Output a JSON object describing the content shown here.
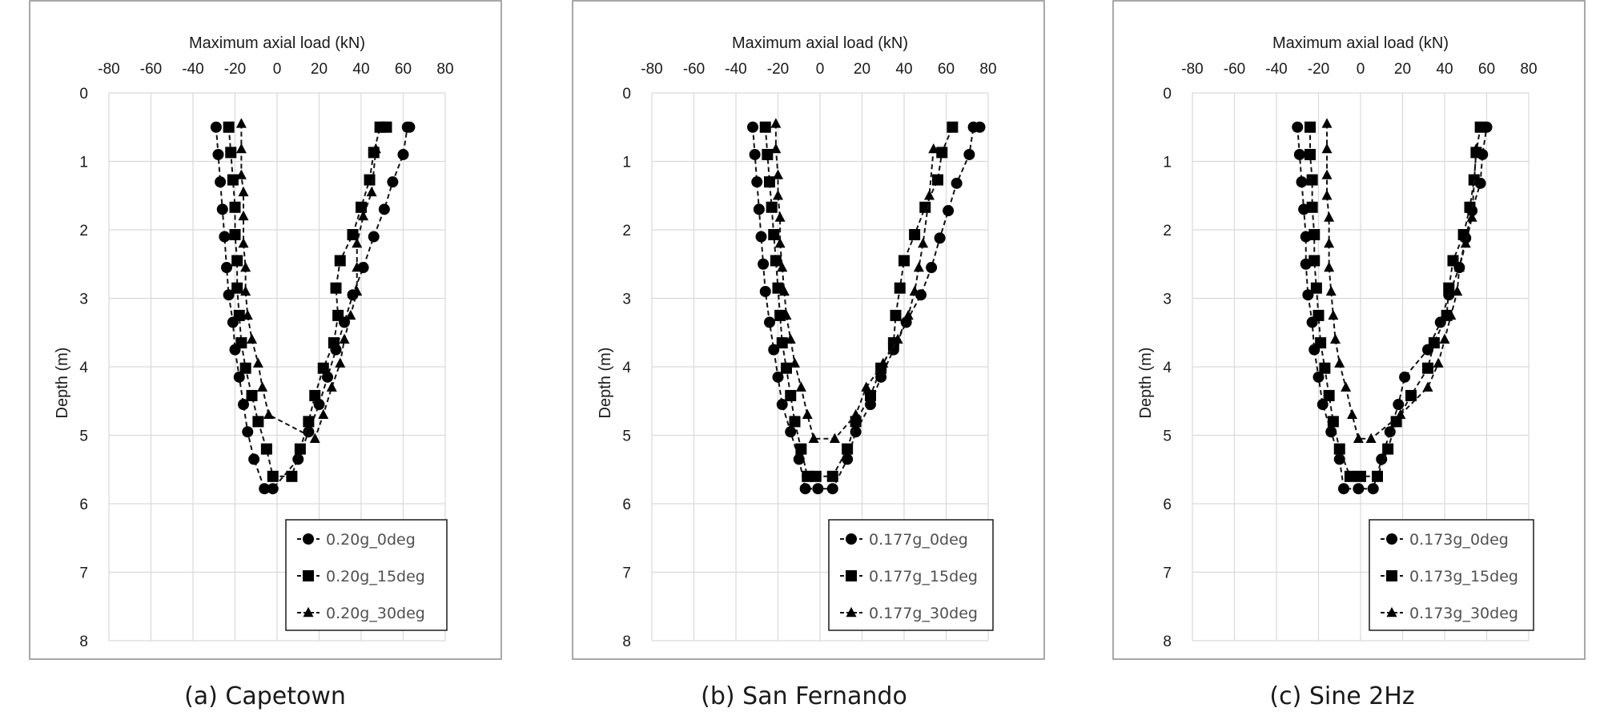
{
  "chart_data": [
    {
      "type": "line",
      "caption": "(a) Capetown",
      "xlabel": "Maximum axial load (kN)",
      "ylabel": "Depth (m)",
      "xlim": [
        -80,
        80
      ],
      "ylim": [
        8,
        0
      ],
      "xticks": [
        -80,
        -60,
        -40,
        -20,
        0,
        20,
        40,
        60,
        80
      ],
      "yticks": [
        0,
        1,
        2,
        3,
        4,
        5,
        6,
        7,
        8
      ],
      "grid": true,
      "legend_position": "bottom-right",
      "series": [
        {
          "name": "0.20g_0deg",
          "marker": "circle",
          "x": [
            -29,
            -28,
            -27,
            -26,
            -25,
            -24,
            -23,
            -21,
            -20,
            -18,
            -16,
            -14,
            -11,
            -6,
            -2,
            10,
            15,
            20,
            24,
            28,
            32,
            36,
            41,
            46,
            51,
            55,
            60,
            62,
            63
          ],
          "y": [
            0.5,
            0.9,
            1.3,
            1.7,
            2.1,
            2.55,
            2.95,
            3.35,
            3.75,
            4.15,
            4.55,
            4.95,
            5.35,
            5.78,
            5.78,
            5.35,
            4.95,
            4.55,
            4.15,
            3.75,
            3.35,
            2.95,
            2.55,
            2.1,
            1.7,
            1.3,
            0.9,
            0.5,
            0.5
          ]
        },
        {
          "name": "0.20g_15deg",
          "marker": "square",
          "x": [
            -23,
            -22,
            -21,
            -20,
            -20,
            -19,
            -19,
            -18,
            -17,
            -15,
            -12,
            -9,
            -5,
            -2,
            7,
            11,
            15,
            18,
            22,
            27,
            29,
            28,
            30,
            36,
            40,
            44,
            46,
            49,
            52
          ],
          "y": [
            0.5,
            0.87,
            1.27,
            1.67,
            2.07,
            2.45,
            2.85,
            3.25,
            3.65,
            4.02,
            4.42,
            4.8,
            5.2,
            5.6,
            5.6,
            5.2,
            4.8,
            4.42,
            4.02,
            3.65,
            3.25,
            2.85,
            2.45,
            2.07,
            1.67,
            1.27,
            0.87,
            0.5,
            0.5
          ]
        },
        {
          "name": "0.20g_30deg",
          "marker": "triangle",
          "x": [
            -17,
            -17,
            -17,
            -16,
            -16,
            -16,
            -15,
            -15,
            -14,
            -12,
            -9,
            -7,
            -4,
            18,
            22,
            26,
            30,
            32,
            35,
            38,
            38,
            38,
            41,
            45,
            47
          ],
          "y": [
            0.45,
            0.82,
            1.2,
            1.45,
            1.8,
            2.2,
            2.55,
            2.9,
            3.25,
            3.6,
            3.95,
            4.3,
            4.7,
            5.05,
            4.7,
            4.3,
            3.95,
            3.6,
            3.25,
            2.9,
            2.55,
            2.2,
            1.8,
            1.45,
            0.82
          ]
        }
      ]
    },
    {
      "type": "line",
      "caption": "(b) San Fernando",
      "xlabel": "Maximum axial load (kN)",
      "ylabel": "Depth (m)",
      "xlim": [
        -80,
        80
      ],
      "ylim": [
        8,
        0
      ],
      "xticks": [
        -80,
        -60,
        -40,
        -20,
        0,
        20,
        40,
        60,
        80
      ],
      "yticks": [
        0,
        1,
        2,
        3,
        4,
        5,
        6,
        7,
        8
      ],
      "grid": true,
      "legend_position": "bottom-right",
      "series": [
        {
          "name": "0.177g_0deg",
          "marker": "circle",
          "x": [
            -32,
            -31,
            -30,
            -29,
            -28,
            -27,
            -26,
            -24,
            -22,
            -20,
            -18,
            -14,
            -10,
            -7,
            -1,
            6,
            13,
            17,
            24,
            29,
            35,
            41,
            48,
            53,
            57,
            61,
            65,
            71,
            73,
            76
          ],
          "y": [
            0.5,
            0.9,
            1.3,
            1.7,
            2.1,
            2.5,
            2.9,
            3.35,
            3.75,
            4.15,
            4.55,
            4.95,
            5.35,
            5.78,
            5.78,
            5.78,
            5.35,
            4.95,
            4.55,
            4.15,
            3.75,
            3.35,
            2.95,
            2.55,
            2.12,
            1.72,
            1.32,
            0.9,
            0.5,
            0.5
          ]
        },
        {
          "name": "0.177g_15deg",
          "marker": "square",
          "x": [
            -26,
            -25,
            -24,
            -23,
            -22,
            -21,
            -20,
            -19,
            -18,
            -16,
            -14,
            -12,
            -9,
            -6,
            -2,
            6,
            13,
            17,
            24,
            29,
            35,
            36,
            38,
            40,
            45,
            50,
            56,
            58,
            63
          ],
          "y": [
            0.5,
            0.9,
            1.3,
            1.67,
            2.07,
            2.45,
            2.85,
            3.25,
            3.65,
            4.02,
            4.42,
            4.8,
            5.2,
            5.6,
            5.6,
            5.6,
            5.2,
            4.8,
            4.42,
            4.02,
            3.65,
            3.25,
            2.85,
            2.45,
            2.07,
            1.67,
            1.27,
            0.87,
            0.5
          ]
        },
        {
          "name": "0.177g_30deg",
          "marker": "triangle",
          "x": [
            -21,
            -21,
            -20,
            -20,
            -19,
            -19,
            -18,
            -17,
            -16,
            -14,
            -12,
            -9,
            -6,
            -3,
            7,
            17,
            22,
            30,
            37,
            42,
            45,
            47,
            49,
            52,
            54
          ],
          "y": [
            0.45,
            0.82,
            1.2,
            1.5,
            1.82,
            2.2,
            2.55,
            2.9,
            3.25,
            3.6,
            3.95,
            4.3,
            4.7,
            5.05,
            5.05,
            4.7,
            4.3,
            3.95,
            3.6,
            3.25,
            2.9,
            2.55,
            2.2,
            1.5,
            0.82
          ]
        }
      ]
    },
    {
      "type": "line",
      "caption": "(c) Sine 2Hz",
      "xlabel": "Maximum axial load (kN)",
      "ylabel": "Depth (m)",
      "xlim": [
        -80,
        80
      ],
      "ylim": [
        8,
        0
      ],
      "xticks": [
        -80,
        -60,
        -40,
        -20,
        0,
        20,
        40,
        60,
        80
      ],
      "yticks": [
        0,
        1,
        2,
        3,
        4,
        5,
        6,
        7,
        8
      ],
      "grid": true,
      "legend_position": "bottom-right",
      "series": [
        {
          "name": "0.173g_0deg",
          "marker": "circle",
          "x": [
            -30,
            -29,
            -28,
            -27,
            -26,
            -26,
            -25,
            -23,
            -22,
            -20,
            -18,
            -14,
            -10,
            -8,
            -1,
            6,
            10,
            14,
            18,
            21,
            32,
            38,
            42,
            47,
            50,
            53,
            57,
            58,
            60
          ],
          "y": [
            0.5,
            0.9,
            1.3,
            1.7,
            2.1,
            2.5,
            2.95,
            3.35,
            3.75,
            4.15,
            4.55,
            4.95,
            5.35,
            5.78,
            5.78,
            5.78,
            5.35,
            4.95,
            4.55,
            4.15,
            3.75,
            3.35,
            2.95,
            2.55,
            2.12,
            1.72,
            1.32,
            0.9,
            0.5
          ]
        },
        {
          "name": "0.173g_15deg",
          "marker": "square",
          "x": [
            -24,
            -24,
            -23,
            -23,
            -22,
            -22,
            -21,
            -20,
            -19,
            -17,
            -15,
            -13,
            -10,
            -5,
            0,
            8,
            13,
            17,
            24,
            32,
            35,
            41,
            42,
            44,
            49,
            52,
            54,
            55,
            57
          ],
          "y": [
            0.5,
            0.9,
            1.27,
            1.67,
            2.07,
            2.45,
            2.85,
            3.25,
            3.65,
            4.02,
            4.42,
            4.8,
            5.2,
            5.6,
            5.6,
            5.6,
            5.2,
            4.8,
            4.42,
            4.02,
            3.65,
            3.25,
            2.85,
            2.45,
            2.07,
            1.67,
            1.27,
            0.87,
            0.5
          ]
        },
        {
          "name": "0.173g_30deg",
          "marker": "triangle",
          "x": [
            -16,
            -16,
            -16,
            -16,
            -15,
            -15,
            -15,
            -14,
            -13,
            -12,
            -10,
            -7,
            -4,
            -1,
            5,
            19,
            32,
            37,
            40,
            43,
            46,
            47,
            50,
            53,
            55
          ],
          "y": [
            0.45,
            0.82,
            1.2,
            1.5,
            1.82,
            2.2,
            2.55,
            2.9,
            3.25,
            3.6,
            3.95,
            4.3,
            4.7,
            5.05,
            5.05,
            4.7,
            4.3,
            3.95,
            3.6,
            3.25,
            2.9,
            2.55,
            2.2,
            1.82,
            0.82
          ]
        }
      ]
    }
  ]
}
